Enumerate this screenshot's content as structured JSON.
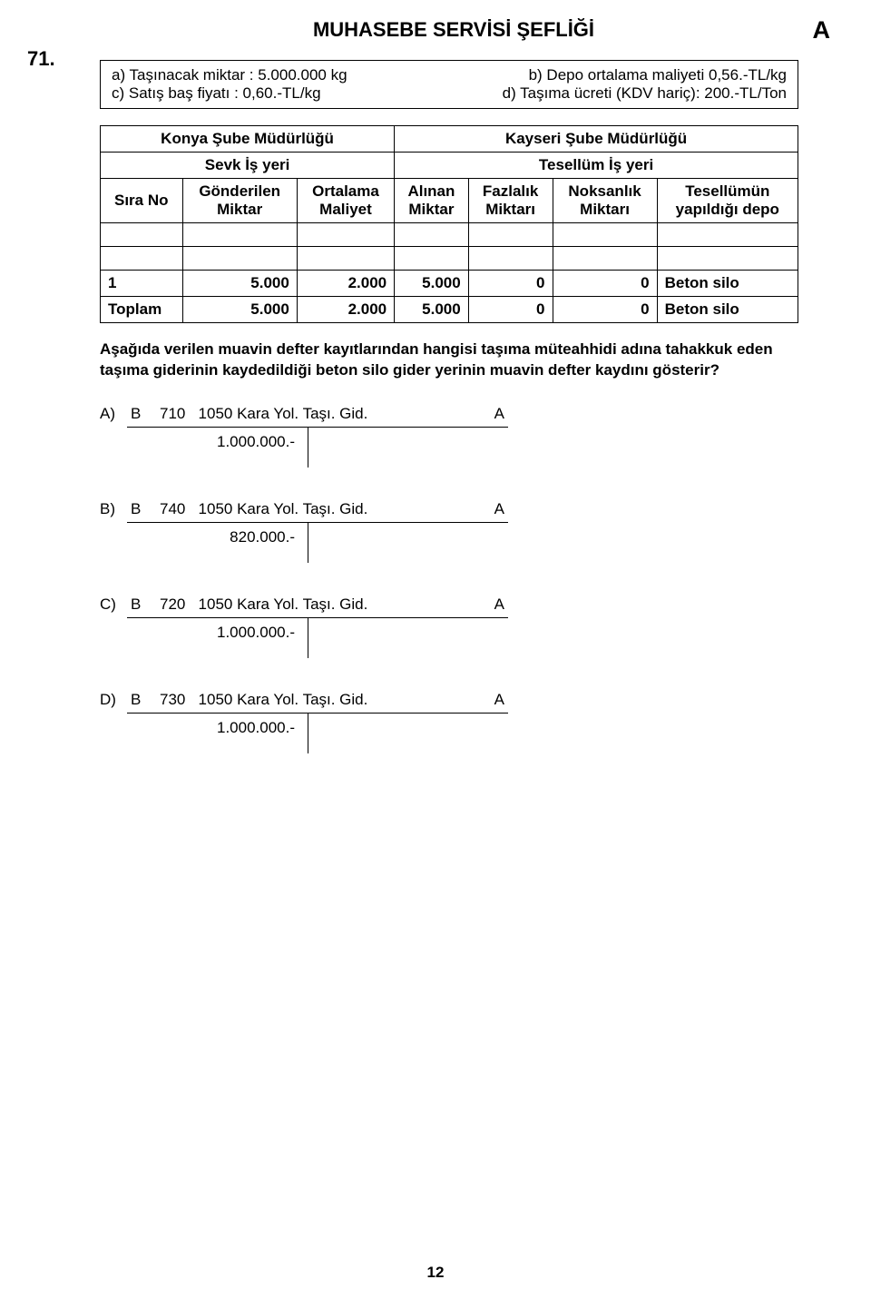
{
  "title": "MUHASEBE SERVİSİ ŞEFLİĞİ",
  "cornerLetter": "A",
  "questionNumber": "71.",
  "info": {
    "a": "a) Taşınacak miktar : 5.000.000 kg",
    "b": "b) Depo ortalama maliyeti  0,56.-TL/kg",
    "c": "c) Satış baş fiyatı    : 0,60.-TL/kg",
    "d": "d) Taşıma ücreti (KDV hariç): 200.-TL/Ton"
  },
  "table": {
    "h1_left": "Konya Şube Müdürlüğü",
    "h1_right": "Kayseri Şube Müdürlüğü",
    "h2_left": "Sevk İş yeri",
    "h2_right": "Tesellüm İş yeri",
    "col1": "Sıra No",
    "col2a": "Gönderilen",
    "col2b": "Miktar",
    "col3a": "Ortalama",
    "col3b": "Maliyet",
    "col4a": "Alınan",
    "col4b": "Miktar",
    "col5a": "Fazlalık",
    "col5b": "Miktarı",
    "col6a": "Noksanlık",
    "col6b": "Miktarı",
    "col7a": "Tesellümün",
    "col7b": "yapıldığı depo",
    "r1": [
      "1",
      "5.000",
      "2.000",
      "5.000",
      "0",
      "0",
      "Beton silo"
    ],
    "r2": [
      "Toplam",
      "5.000",
      "2.000",
      "5.000",
      "0",
      "0",
      "Beton silo"
    ]
  },
  "questionText": "Aşağıda verilen muavin defter kayıtlarından hangisi taşıma müteahhidi adına tahakkuk eden taşıma giderinin kaydedildiği beton silo gider yerinin muavin defter kaydını gösterir?",
  "options": {
    "A": {
      "label": "A)",
      "left": "B",
      "code": "710",
      "desc": "1050 Kara Yol. Taşı. Gid.",
      "right": "A",
      "amount": "1.000.000.-"
    },
    "B": {
      "label": "B)",
      "left": "B",
      "code": "740",
      "desc": "1050 Kara Yol. Taşı. Gid.",
      "right": "A",
      "amount": "820.000.-"
    },
    "C": {
      "label": "C)",
      "left": "B",
      "code": "720",
      "desc": "1050 Kara Yol. Taşı. Gid.",
      "right": "A",
      "amount": "1.000.000.-"
    },
    "D": {
      "label": "D)",
      "left": "B",
      "code": "730",
      "desc": "1050 Kara Yol. Taşı. Gid.",
      "right": "A",
      "amount": "1.000.000.-"
    }
  },
  "pageNumber": "12",
  "colors": {
    "text": "#000000",
    "background": "#ffffff",
    "border": "#000000"
  },
  "fontSizes": {
    "title": 22,
    "body": 17,
    "corner": 27
  }
}
